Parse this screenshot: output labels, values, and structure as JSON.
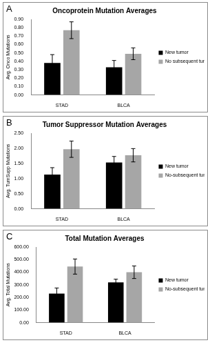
{
  "chart_data": [
    {
      "type": "bar",
      "panel": "A",
      "title": "Oncoprotein Mutation Averages",
      "y_label": "Avg. Onco Mutations",
      "categories": [
        "STAD",
        "BLCA"
      ],
      "series": [
        {
          "name": "New tumor",
          "color": "#000000",
          "values": [
            0.38,
            0.33
          ],
          "errors": [
            0.1,
            0.08
          ]
        },
        {
          "name": "No subsequent tumor",
          "color": "#a6a6a6",
          "values": [
            0.77,
            0.49
          ],
          "errors": [
            0.1,
            0.07
          ]
        }
      ],
      "ylim": [
        0,
        0.9
      ],
      "yticks": [
        {
          "value": 0,
          "label": "0.00"
        },
        {
          "value": 0.1,
          "label": "0.10"
        },
        {
          "value": 0.2,
          "label": "0.20"
        },
        {
          "value": 0.3,
          "label": "0.30"
        },
        {
          "value": 0.4,
          "label": "0.40"
        },
        {
          "value": 0.5,
          "label": "0.50"
        },
        {
          "value": 0.6,
          "label": "0.60"
        },
        {
          "value": 0.7,
          "label": "0.70"
        },
        {
          "value": 0.8,
          "label": "0.80"
        },
        {
          "value": 0.9,
          "label": "0.90"
        }
      ],
      "grid": false,
      "legend": "right"
    },
    {
      "type": "bar",
      "panel": "B",
      "title": "Tumor Suppressor Mutation Averages",
      "y_label": "Avg. TumSupp Mutations",
      "categories": [
        "STAD",
        "BLCA"
      ],
      "series": [
        {
          "name": "New tumor",
          "color": "#000000",
          "values": [
            1.13,
            1.53
          ],
          "errors": [
            0.23,
            0.2
          ]
        },
        {
          "name": "No-subsequent tumor",
          "color": "#a6a6a6",
          "values": [
            1.97,
            1.77
          ],
          "errors": [
            0.27,
            0.22
          ]
        }
      ],
      "ylim": [
        0,
        2.5
      ],
      "yticks": [
        {
          "value": 0,
          "label": "0.00"
        },
        {
          "value": 0.5,
          "label": "0.50"
        },
        {
          "value": 1,
          "label": "1.00"
        },
        {
          "value": 1.5,
          "label": "1.50"
        },
        {
          "value": 2,
          "label": "2.00"
        },
        {
          "value": 2.5,
          "label": "2.50"
        }
      ],
      "grid": false,
      "legend": "right"
    },
    {
      "type": "bar",
      "panel": "C",
      "title": "Total Mutation Averages",
      "y_label": "Avg. Total Mutations",
      "categories": [
        "STAD",
        "BLCA"
      ],
      "series": [
        {
          "name": "New tumor",
          "color": "#000000",
          "values": [
            230,
            320
          ],
          "errors": [
            45,
            25
          ]
        },
        {
          "name": "No-subsequent tumor",
          "color": "#a6a6a6",
          "values": [
            445,
            400
          ],
          "errors": [
            60,
            50
          ]
        }
      ],
      "ylim": [
        0,
        600
      ],
      "yticks": [
        {
          "value": 0,
          "label": "0.00"
        },
        {
          "value": 100,
          "label": "100.00"
        },
        {
          "value": 200,
          "label": "200.00"
        },
        {
          "value": 300,
          "label": "300.00"
        },
        {
          "value": 400,
          "label": "400.00"
        },
        {
          "value": 500,
          "label": "500.00"
        },
        {
          "value": 600,
          "label": "600.00"
        }
      ],
      "grid": false,
      "legend": "right"
    }
  ]
}
